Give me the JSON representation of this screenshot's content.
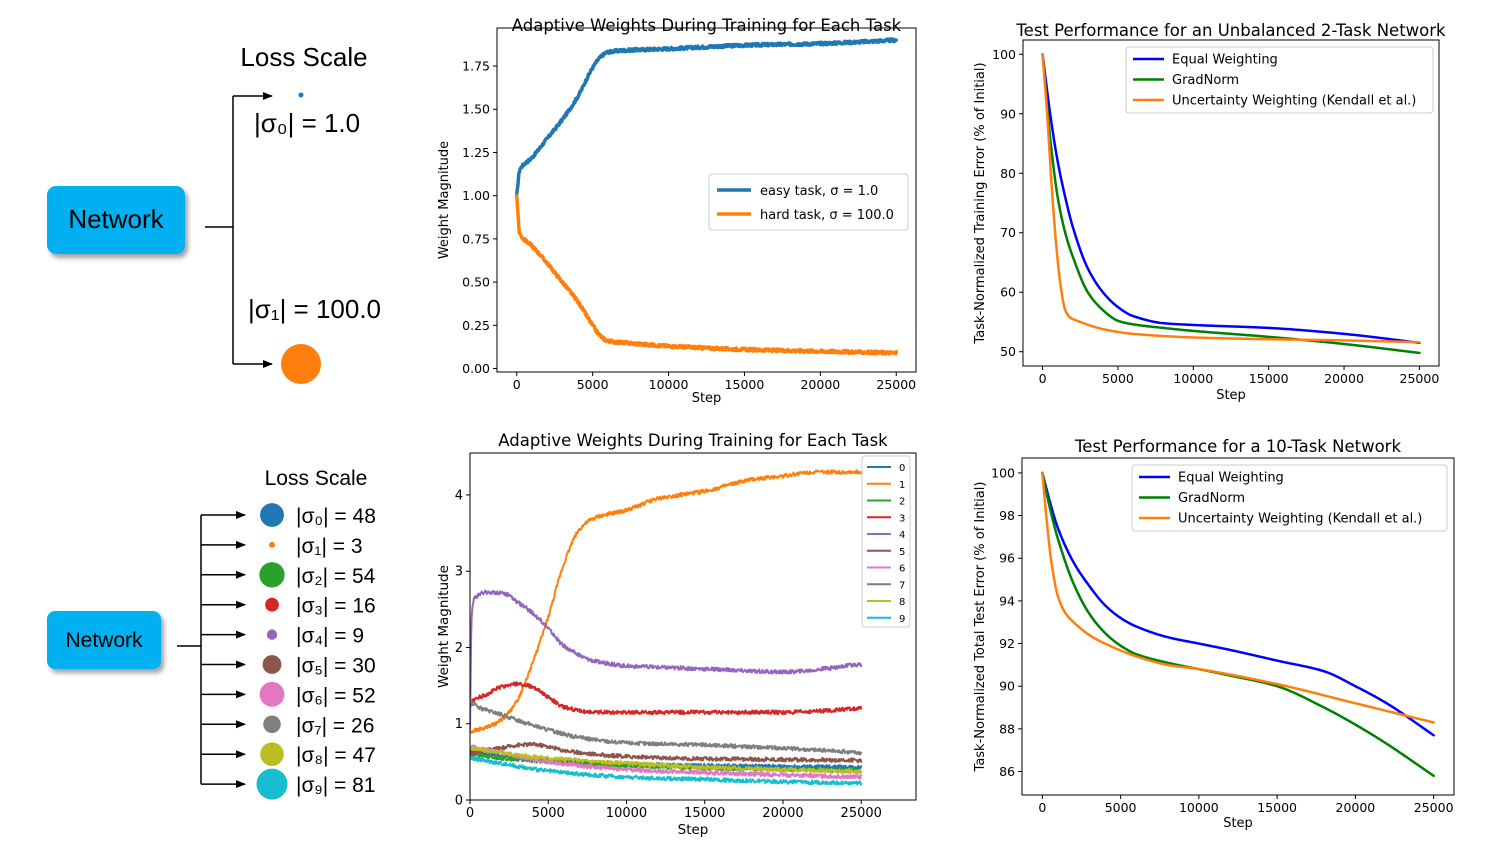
{
  "diagram_top": {
    "title": "Loss Scale",
    "network_label": "Network",
    "tasks": [
      {
        "label": "|σ₀| = 1.0",
        "color": "#1f77b4",
        "scale": 1.0
      },
      {
        "label": "|σ₁| = 100.0",
        "color": "#ff7f0e",
        "scale": 100.0
      }
    ]
  },
  "diagram_bottom": {
    "title": "Loss Scale",
    "network_label": "Network",
    "tasks": [
      {
        "label": "|σ₀| = 48",
        "color": "#1f77b4",
        "scale": 48
      },
      {
        "label": "|σ₁| = 3",
        "color": "#ff7f0e",
        "scale": 3
      },
      {
        "label": "|σ₂| = 54",
        "color": "#2ca02c",
        "scale": 54
      },
      {
        "label": "|σ₃| = 16",
        "color": "#d62728",
        "scale": 16
      },
      {
        "label": "|σ₄| = 9",
        "color": "#9467bd",
        "scale": 9
      },
      {
        "label": "|σ₅| = 30",
        "color": "#8c564b",
        "scale": 30
      },
      {
        "label": "|σ₆| = 52",
        "color": "#e377c2",
        "scale": 52
      },
      {
        "label": "|σ₇| = 26",
        "color": "#7f7f7f",
        "scale": 26
      },
      {
        "label": "|σ₈| = 47",
        "color": "#bcbd22",
        "scale": 47
      },
      {
        "label": "|σ₉| = 81",
        "color": "#17becf",
        "scale": 81
      }
    ]
  },
  "chart_data": [
    {
      "type": "line",
      "title": "Adaptive Weights During Training for Each Task",
      "xlabel": "Step",
      "ylabel": "Weight Magnitude",
      "xlim": [
        -1300,
        26300
      ],
      "ylim": [
        -0.02,
        1.97
      ],
      "xticks": [
        0,
        5000,
        10000,
        15000,
        20000,
        25000
      ],
      "yticks": [
        0.0,
        0.25,
        0.5,
        0.75,
        1.0,
        1.25,
        1.5,
        1.75
      ],
      "ytick_labels": [
        "0.00",
        "0.25",
        "0.50",
        "0.75",
        "1.00",
        "1.25",
        "1.50",
        "1.75"
      ],
      "legend": "center-right",
      "linewidth": 3.5,
      "noise": 0.008,
      "series": [
        {
          "name": "easy task, σ = 1.0",
          "color": "#1f77b4",
          "x": [
            0,
            200,
            1000,
            2000,
            3000,
            4000,
            5000,
            5500,
            6000,
            7000,
            10000,
            15000,
            20000,
            25000
          ],
          "y": [
            1.0,
            1.15,
            1.22,
            1.33,
            1.44,
            1.57,
            1.74,
            1.8,
            1.83,
            1.84,
            1.85,
            1.87,
            1.88,
            1.9
          ]
        },
        {
          "name": "hard task, σ = 100.0",
          "color": "#ff7f0e",
          "x": [
            0,
            200,
            1000,
            2000,
            3000,
            4000,
            5000,
            5500,
            6000,
            7000,
            10000,
            15000,
            20000,
            25000
          ],
          "y": [
            1.0,
            0.78,
            0.71,
            0.61,
            0.5,
            0.39,
            0.25,
            0.19,
            0.16,
            0.15,
            0.13,
            0.11,
            0.1,
            0.09
          ]
        }
      ]
    },
    {
      "type": "line",
      "title": "Test Performance for an Unbalanced 2-Task Network",
      "xlabel": "Step",
      "ylabel": "Task-Normalized Training Error (% of Initial)",
      "xlim": [
        -1300,
        26300
      ],
      "ylim": [
        47.6,
        102.4
      ],
      "xticks": [
        0,
        5000,
        10000,
        15000,
        20000,
        25000
      ],
      "yticks": [
        50,
        60,
        70,
        80,
        90,
        100
      ],
      "legend": "top-center",
      "linewidth": 2.5,
      "noise": 0,
      "series": [
        {
          "name": "Equal Weighting",
          "color": "#0000ff",
          "x": [
            0,
            500,
            1000,
            1500,
            2000,
            3000,
            4000,
            5000,
            6000,
            8000,
            10000,
            15000,
            20000,
            25000
          ],
          "y": [
            100,
            90,
            82,
            76,
            71,
            64,
            60,
            57.5,
            56,
            54.8,
            54.5,
            54,
            53,
            51.5
          ]
        },
        {
          "name": "GradNorm",
          "color": "#008000",
          "x": [
            0,
            500,
            1000,
            1500,
            2000,
            3000,
            4000,
            5000,
            6000,
            8000,
            10000,
            15000,
            20000,
            25000
          ],
          "y": [
            100,
            86,
            76,
            70,
            66,
            60,
            57,
            55.2,
            54.6,
            54,
            53.5,
            52.5,
            51.3,
            49.8
          ]
        },
        {
          "name": "Uncertainty Weighting (Kendall et al.)",
          "color": "#ff7f0e",
          "x": [
            0,
            300,
            600,
            900,
            1200,
            1500,
            1800,
            2500,
            4000,
            6000,
            10000,
            15000,
            20000,
            25000
          ],
          "y": [
            100,
            90,
            78,
            68,
            61,
            57,
            55.8,
            55,
            53.8,
            53,
            52.4,
            52.1,
            51.9,
            51.6
          ]
        }
      ]
    },
    {
      "type": "line",
      "title": "Adaptive Weights During Training for Each Task",
      "xlabel": "Step",
      "ylabel": "Weight Magnitude",
      "xlim": [
        0,
        28500
      ],
      "ylim": [
        0,
        4.55
      ],
      "xticks": [
        0,
        5000,
        10000,
        15000,
        20000,
        25000
      ],
      "yticks": [
        0,
        1,
        2,
        3,
        4
      ],
      "legend": "upper-right",
      "linewidth": 2,
      "noise": 0.025,
      "series": [
        {
          "name": "0",
          "color": "#1f77b4",
          "x": [
            0,
            2000,
            5000,
            10000,
            15000,
            20000,
            25000
          ],
          "y": [
            0.65,
            0.58,
            0.52,
            0.47,
            0.45,
            0.44,
            0.43
          ]
        },
        {
          "name": "1",
          "color": "#ff7f0e",
          "x": [
            0,
            1000,
            2000,
            3000,
            4000,
            5000,
            6000,
            7000,
            8000,
            10000,
            12000,
            15000,
            18000,
            20000,
            22000,
            25000
          ],
          "y": [
            0.9,
            0.95,
            1.05,
            1.3,
            1.8,
            2.4,
            3.1,
            3.55,
            3.7,
            3.8,
            3.95,
            4.05,
            4.2,
            4.25,
            4.3,
            4.3
          ]
        },
        {
          "name": "2",
          "color": "#2ca02c",
          "x": [
            0,
            2000,
            5000,
            10000,
            15000,
            20000,
            25000
          ],
          "y": [
            0.6,
            0.55,
            0.5,
            0.45,
            0.42,
            0.4,
            0.38
          ]
        },
        {
          "name": "3",
          "color": "#d62728",
          "x": [
            0,
            200,
            1000,
            2000,
            3000,
            4000,
            5000,
            6000,
            8000,
            10000,
            15000,
            20000,
            25000
          ],
          "y": [
            1.2,
            1.3,
            1.38,
            1.48,
            1.52,
            1.48,
            1.35,
            1.22,
            1.15,
            1.15,
            1.15,
            1.15,
            1.2
          ]
        },
        {
          "name": "4",
          "color": "#9467bd",
          "x": [
            0,
            100,
            300,
            1000,
            2000,
            3000,
            4000,
            5000,
            6000,
            8000,
            10000,
            15000,
            20000,
            25000
          ],
          "y": [
            0.9,
            2.4,
            2.65,
            2.72,
            2.72,
            2.6,
            2.45,
            2.25,
            2.02,
            1.82,
            1.76,
            1.72,
            1.68,
            1.78
          ]
        },
        {
          "name": "5",
          "color": "#8c564b",
          "x": [
            0,
            1000,
            2000,
            3000,
            4000,
            5000,
            6000,
            8000,
            10000,
            15000,
            20000,
            25000
          ],
          "y": [
            0.6,
            0.65,
            0.68,
            0.72,
            0.73,
            0.7,
            0.65,
            0.6,
            0.57,
            0.54,
            0.53,
            0.52
          ]
        },
        {
          "name": "6",
          "color": "#e377c2",
          "x": [
            0,
            2000,
            5000,
            10000,
            15000,
            20000,
            25000
          ],
          "y": [
            0.7,
            0.62,
            0.5,
            0.4,
            0.36,
            0.33,
            0.3
          ]
        },
        {
          "name": "7",
          "color": "#7f7f7f",
          "x": [
            0,
            500,
            2000,
            3000,
            5000,
            7000,
            10000,
            15000,
            20000,
            25000
          ],
          "y": [
            1.3,
            1.22,
            1.12,
            1.05,
            0.92,
            0.82,
            0.75,
            0.72,
            0.68,
            0.62
          ]
        },
        {
          "name": "8",
          "color": "#bcbd22",
          "x": [
            0,
            2000,
            5000,
            10000,
            15000,
            20000,
            25000
          ],
          "y": [
            0.68,
            0.62,
            0.55,
            0.48,
            0.43,
            0.4,
            0.37
          ]
        },
        {
          "name": "9",
          "color": "#17becf",
          "x": [
            0,
            2000,
            5000,
            10000,
            15000,
            20000,
            25000
          ],
          "y": [
            0.55,
            0.48,
            0.38,
            0.3,
            0.27,
            0.24,
            0.22
          ]
        }
      ]
    },
    {
      "type": "line",
      "title": "Test Performance for a 10-Task Network",
      "xlabel": "Step",
      "ylabel": "Task-Normalized Total Test Error (% of Initial)",
      "xlim": [
        -1300,
        26300
      ],
      "ylim": [
        84.9,
        100.7
      ],
      "xticks": [
        0,
        5000,
        10000,
        15000,
        20000,
        25000
      ],
      "yticks": [
        86,
        88,
        90,
        92,
        94,
        96,
        98,
        100
      ],
      "legend": "top-center",
      "linewidth": 2.5,
      "noise": 0,
      "series": [
        {
          "name": "Equal Weighting",
          "color": "#0000ff",
          "x": [
            0,
            500,
            1000,
            2000,
            3000,
            4000,
            5000,
            6000,
            8000,
            10000,
            12000,
            15000,
            18000,
            20000,
            22000,
            25000
          ],
          "y": [
            100,
            98.6,
            97.4,
            95.8,
            94.7,
            93.8,
            93.2,
            92.8,
            92.3,
            92.0,
            91.7,
            91.2,
            90.7,
            90.0,
            89.2,
            87.7
          ]
        },
        {
          "name": "GradNorm",
          "color": "#008000",
          "x": [
            0,
            500,
            1000,
            2000,
            3000,
            4000,
            5000,
            6000,
            8000,
            10000,
            12000,
            15000,
            18000,
            20000,
            22000,
            25000
          ],
          "y": [
            100,
            98.3,
            96.9,
            94.8,
            93.4,
            92.5,
            91.9,
            91.5,
            91.1,
            90.8,
            90.5,
            90.0,
            89.0,
            88.2,
            87.3,
            85.8
          ]
        },
        {
          "name": "Uncertainty Weighting (Kendall et al.)",
          "color": "#ff7f0e",
          "x": [
            0,
            300,
            600,
            1000,
            1500,
            2000,
            3000,
            4000,
            6000,
            8000,
            10000,
            15000,
            20000,
            25000
          ],
          "y": [
            100,
            97.6,
            95.7,
            94.2,
            93.4,
            93.0,
            92.4,
            92.0,
            91.4,
            91.0,
            90.8,
            90.1,
            89.2,
            88.3
          ]
        }
      ]
    }
  ]
}
